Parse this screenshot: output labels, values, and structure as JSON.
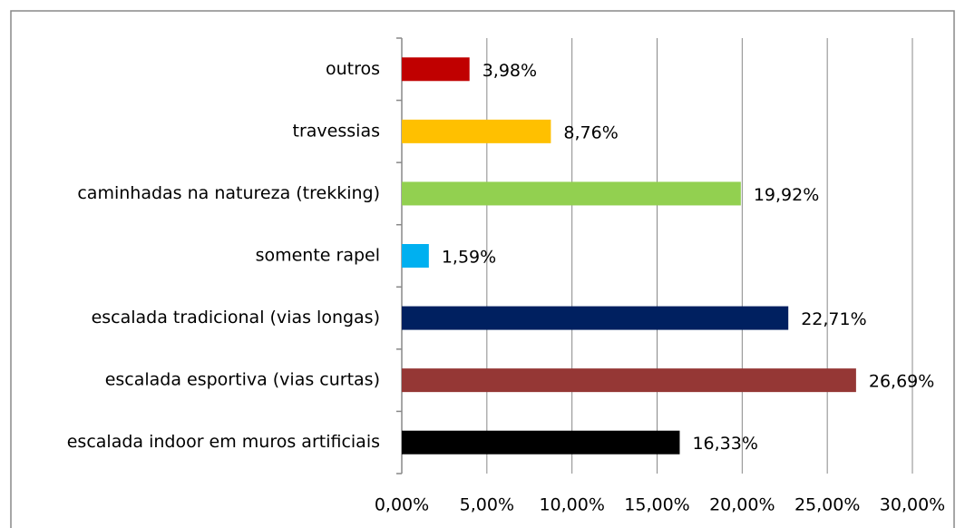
{
  "chart_data": {
    "type": "hbar",
    "categories": [
      "outros",
      "travessias",
      "caminhadas na natureza (trekking)",
      "somente rapel",
      "escalada tradicional (vias longas)",
      "escalada esportiva (vias curtas)",
      "escalada indoor em muros artificiais"
    ],
    "values": [
      3.98,
      8.76,
      19.92,
      1.59,
      22.71,
      26.69,
      16.33
    ],
    "value_labels": [
      "3,98%",
      "8,76%",
      "19,92%",
      "1,59%",
      "22,71%",
      "26,69%",
      "16,33%"
    ],
    "colors": [
      "#c00000",
      "#ffc000",
      "#92d050",
      "#00b0f0",
      "#002060",
      "#953735",
      "#000000"
    ],
    "xlim": [
      0,
      30
    ],
    "xticks": [
      {
        "value": 0,
        "label": "0,00%"
      },
      {
        "value": 5,
        "label": "5,00%"
      },
      {
        "value": 10,
        "label": "10,00%"
      },
      {
        "value": 15,
        "label": "15,00%"
      },
      {
        "value": 20,
        "label": "20,00%"
      },
      {
        "value": 25,
        "label": "25,00%"
      },
      {
        "value": 30,
        "label": "30,00%"
      }
    ],
    "grid": true
  }
}
